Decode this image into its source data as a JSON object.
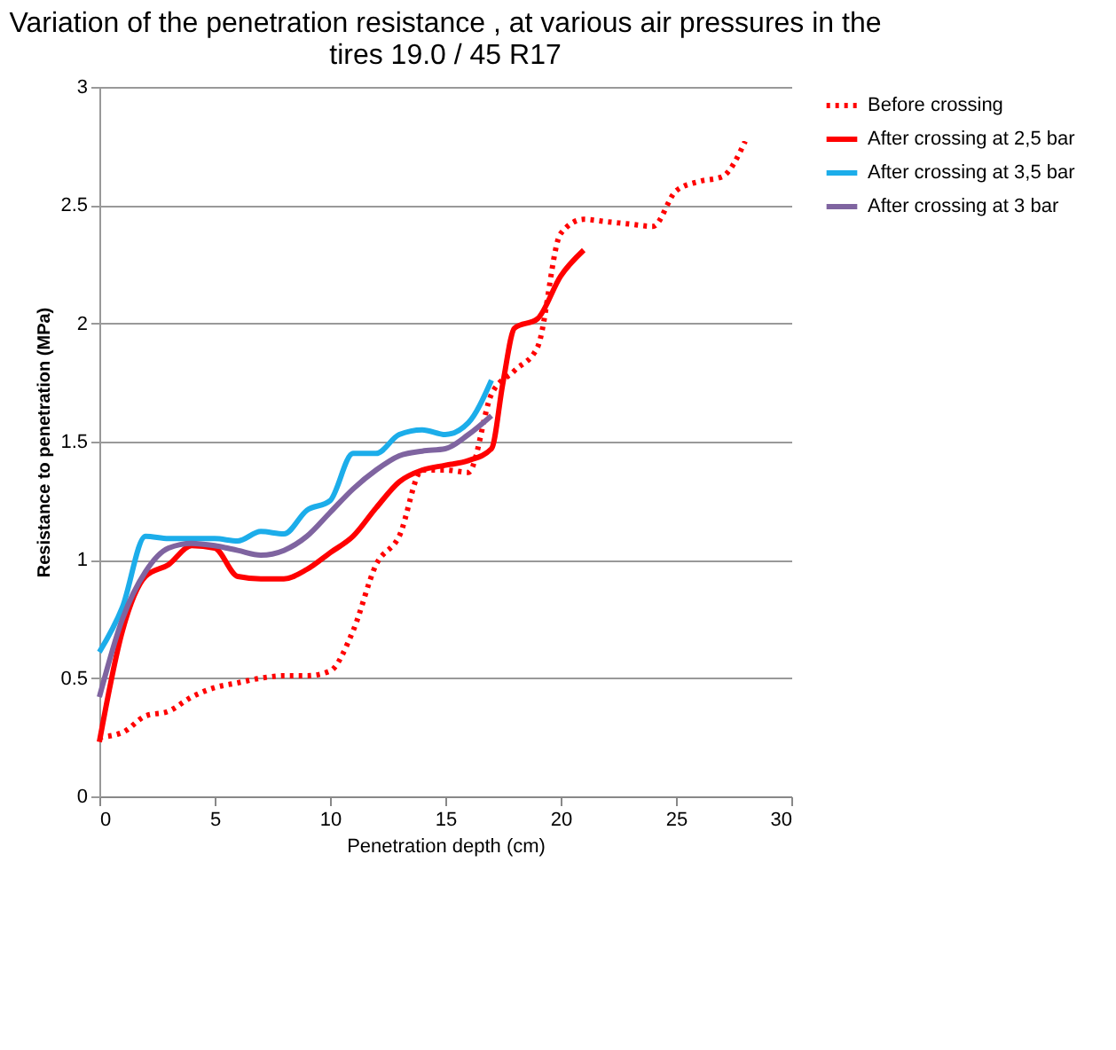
{
  "chart_data": {
    "type": "line",
    "title": "Variation of the penetration resistance , at various air pressures in the tires  19.0 / 45 R17",
    "xlabel": "Penetration depth (cm)",
    "ylabel": "Resistance to penetration (MPa)",
    "xlim": [
      0,
      30
    ],
    "xticks": [
      0,
      5,
      10,
      15,
      20,
      25,
      30
    ],
    "ylim": [
      0,
      3
    ],
    "yticks": [
      0,
      0.5,
      1,
      1.5,
      2,
      2.5,
      3
    ],
    "grid": "y",
    "legend": "right",
    "series": [
      {
        "name": "Before crossing",
        "color": "#ff0000",
        "line_style": "dotted",
        "x": [
          0,
          1,
          2,
          3,
          4,
          5,
          6,
          7,
          8,
          9,
          10,
          11,
          12,
          13,
          14,
          15,
          16,
          17,
          18,
          19,
          20,
          21,
          22,
          23,
          24,
          25,
          26,
          27,
          28
        ],
        "values": [
          0.25,
          0.27,
          0.34,
          0.36,
          0.42,
          0.46,
          0.48,
          0.5,
          0.51,
          0.51,
          0.53,
          0.7,
          0.98,
          1.1,
          1.38,
          1.38,
          1.37,
          1.7,
          1.8,
          1.9,
          2.38,
          2.44,
          2.43,
          2.42,
          2.41,
          2.56,
          2.6,
          2.62,
          2.77
        ]
      },
      {
        "name": "After crossing at 2,5 bar",
        "color": "#ff0000",
        "line_style": "solid",
        "x": [
          0,
          1,
          2,
          3,
          4,
          5,
          6,
          7,
          8,
          9,
          10,
          11,
          12,
          13,
          14,
          15,
          16,
          17,
          17.5,
          18,
          19,
          20,
          21
        ],
        "values": [
          0.23,
          0.7,
          0.93,
          0.98,
          1.06,
          1.05,
          0.93,
          0.92,
          0.92,
          0.96,
          1.03,
          1.1,
          1.22,
          1.33,
          1.38,
          1.4,
          1.42,
          1.47,
          1.75,
          1.98,
          2.02,
          2.2,
          2.31
        ]
      },
      {
        "name": "After crossing at 3,5 bar",
        "color": "#1cadea",
        "line_style": "solid",
        "x": [
          0,
          1,
          2,
          3,
          4,
          5,
          6,
          7,
          8,
          9,
          10,
          11,
          12,
          13,
          14,
          15,
          16,
          17
        ],
        "values": [
          0.61,
          0.8,
          1.1,
          1.09,
          1.09,
          1.09,
          1.08,
          1.12,
          1.11,
          1.21,
          1.25,
          1.45,
          1.45,
          1.53,
          1.55,
          1.53,
          1.58,
          1.76
        ]
      },
      {
        "name": "After crossing at 3 bar",
        "color": "#7f64a0",
        "line_style": "solid",
        "x": [
          0,
          1,
          2,
          3,
          4,
          5,
          6,
          7,
          8,
          9,
          10,
          11,
          12,
          13,
          14,
          15,
          16,
          17
        ],
        "values": [
          0.42,
          0.75,
          0.95,
          1.05,
          1.07,
          1.06,
          1.04,
          1.02,
          1.04,
          1.1,
          1.2,
          1.3,
          1.38,
          1.44,
          1.46,
          1.47,
          1.53,
          1.61
        ]
      }
    ]
  }
}
